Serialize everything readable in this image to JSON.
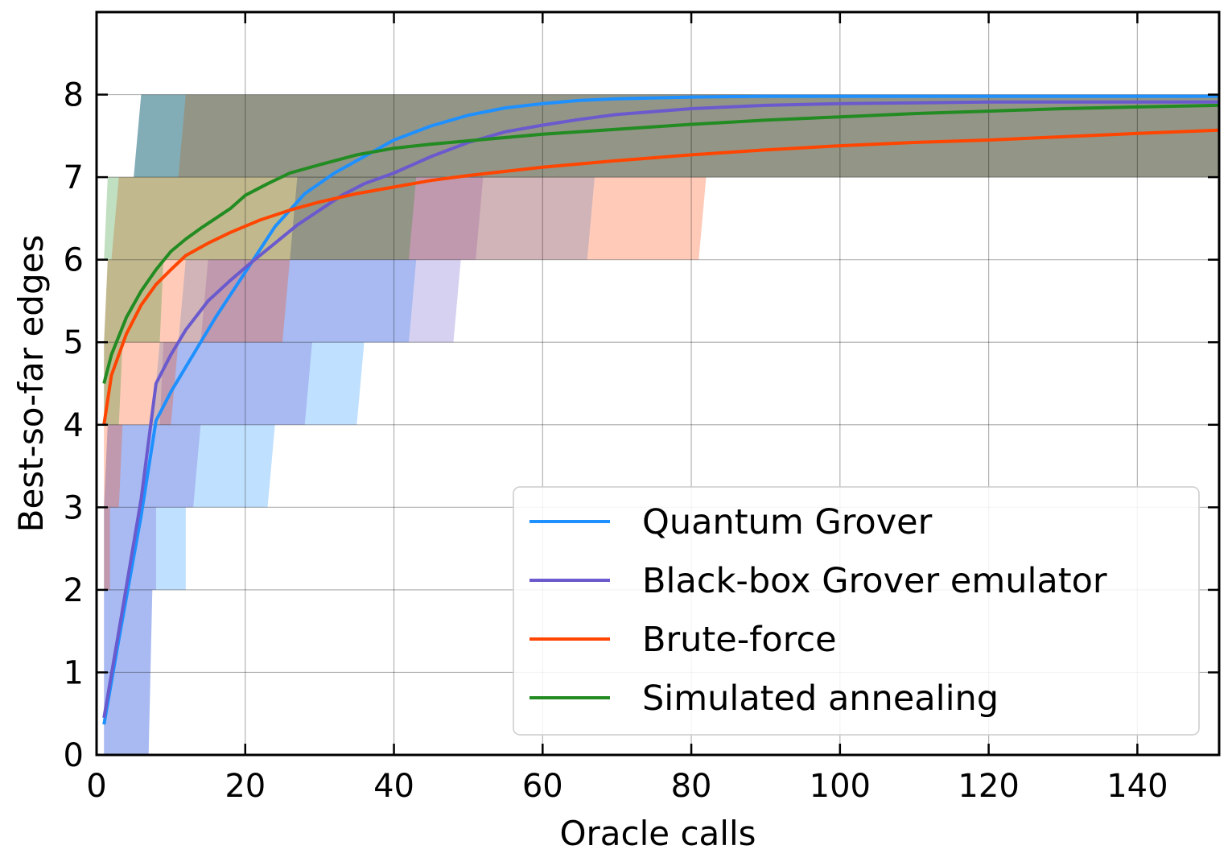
{
  "chart_data": {
    "type": "line",
    "title": "",
    "xlabel": "Oracle calls",
    "ylabel": "Best-so-far edges",
    "xlim": [
      0,
      151
    ],
    "ylim": [
      0,
      9
    ],
    "xticks": [
      0,
      20,
      40,
      60,
      80,
      100,
      120,
      140
    ],
    "yticks": [
      0,
      1,
      2,
      3,
      4,
      5,
      6,
      7,
      8
    ],
    "grid": true,
    "legend_position": "lower-right",
    "series": [
      {
        "name": "Quantum Grover",
        "color": "#1e90ff",
        "x": [
          1,
          3,
          6,
          8,
          10,
          13,
          16,
          20,
          24,
          28,
          32,
          36,
          40,
          45,
          50,
          55,
          60,
          65,
          70,
          80,
          90,
          100,
          110,
          120,
          130,
          140,
          151
        ],
        "y": [
          0.37,
          1.4,
          2.9,
          4.05,
          4.4,
          4.85,
          5.3,
          5.85,
          6.4,
          6.8,
          7.05,
          7.25,
          7.45,
          7.62,
          7.75,
          7.84,
          7.89,
          7.93,
          7.95,
          7.97,
          7.98,
          7.98,
          7.98,
          7.98,
          7.98,
          7.98,
          7.98
        ],
        "band": [
          {
            "y0": 0,
            "y1": 2,
            "x_left": [
              1,
              1
            ],
            "x_right": [
              7,
              7.5
            ]
          },
          {
            "y0": 2,
            "y1": 3,
            "x_left": [
              1,
              1
            ],
            "x_right": [
              12,
              12
            ]
          },
          {
            "y0": 3,
            "y1": 4,
            "x_left": [
              1,
              1.5
            ],
            "x_right": [
              23,
              24
            ]
          },
          {
            "y0": 4,
            "y1": 5,
            "x_left": [
              7.5,
              8.5
            ],
            "x_right": [
              35,
              36
            ]
          },
          {
            "y0": 5,
            "y1": 6,
            "x_left": [
              11,
              12
            ],
            "x_right": [
              42,
              43
            ]
          },
          {
            "y0": 6,
            "y1": 7,
            "x_left": [
              26,
              27
            ],
            "x_right": [
              66,
              67
            ]
          },
          {
            "y0": 7,
            "y1": 8,
            "x_left": [
              5,
              6
            ],
            "x_right": [
              151,
              151
            ]
          }
        ]
      },
      {
        "name": "Black-box Grover emulator",
        "color": "#6a5acd",
        "x": [
          1,
          3,
          6,
          8,
          10,
          12,
          15,
          18,
          21,
          24,
          27,
          30,
          33,
          36,
          40,
          45,
          50,
          55,
          60,
          65,
          70,
          80,
          90,
          100,
          110,
          120,
          130,
          140,
          151
        ],
        "y": [
          0.45,
          1.5,
          3.1,
          4.5,
          4.85,
          5.15,
          5.5,
          5.75,
          5.98,
          6.2,
          6.42,
          6.6,
          6.78,
          6.92,
          7.05,
          7.25,
          7.42,
          7.55,
          7.63,
          7.7,
          7.76,
          7.83,
          7.87,
          7.89,
          7.9,
          7.91,
          7.91,
          7.91,
          7.91
        ],
        "band": [
          {
            "y0": 0,
            "y1": 2,
            "x_left": [
              1,
              1
            ],
            "x_right": [
              7,
              7.5
            ]
          },
          {
            "y0": 2,
            "y1": 3,
            "x_left": [
              1,
              1
            ],
            "x_right": [
              8,
              8
            ]
          },
          {
            "y0": 3,
            "y1": 4,
            "x_left": [
              1,
              1.5
            ],
            "x_right": [
              13,
              14
            ]
          },
          {
            "y0": 4,
            "y1": 5,
            "x_left": [
              8.5,
              9
            ],
            "x_right": [
              28,
              29
            ]
          },
          {
            "y0": 5,
            "y1": 6,
            "x_left": [
              14,
              15
            ],
            "x_right": [
              48,
              49
            ]
          },
          {
            "y0": 6,
            "y1": 7,
            "x_left": [
              26,
              27
            ],
            "x_right": [
              51,
              52
            ]
          },
          {
            "y0": 7,
            "y1": 8,
            "x_left": [
              5,
              6
            ],
            "x_right": [
              151,
              151
            ]
          }
        ]
      },
      {
        "name": "Brute-force",
        "color": "#ff4500",
        "x": [
          1,
          2,
          4,
          6,
          8,
          10,
          12,
          15,
          18,
          22,
          26,
          30,
          35,
          40,
          45,
          50,
          55,
          60,
          70,
          80,
          90,
          100,
          110,
          120,
          130,
          140,
          151
        ],
        "y": [
          4.0,
          4.6,
          5.1,
          5.45,
          5.7,
          5.88,
          6.05,
          6.2,
          6.33,
          6.48,
          6.6,
          6.7,
          6.8,
          6.88,
          6.96,
          7.02,
          7.07,
          7.12,
          7.2,
          7.27,
          7.33,
          7.38,
          7.42,
          7.45,
          7.49,
          7.53,
          7.57
        ],
        "band": [
          {
            "y0": 2,
            "y1": 3,
            "x_left": [
              1,
              1
            ],
            "x_right": [
              1.8,
              1.8
            ]
          },
          {
            "y0": 3,
            "y1": 4,
            "x_left": [
              1,
              1
            ],
            "x_right": [
              3,
              3.5
            ]
          },
          {
            "y0": 4,
            "y1": 5,
            "x_left": [
              1,
              1
            ],
            "x_right": [
              10,
              11
            ]
          },
          {
            "y0": 5,
            "y1": 6,
            "x_left": [
              1,
              1.5
            ],
            "x_right": [
              25,
              26
            ]
          },
          {
            "y0": 6,
            "y1": 7,
            "x_left": [
              2,
              3
            ],
            "x_right": [
              81,
              82
            ]
          },
          {
            "y0": 7,
            "y1": 8,
            "x_left": [
              11,
              12
            ],
            "x_right": [
              151,
              151
            ]
          }
        ]
      },
      {
        "name": "Simulated annealing",
        "color": "#228b22",
        "x": [
          1,
          2,
          4,
          6,
          8,
          10,
          12,
          14,
          16,
          18,
          20,
          23,
          26,
          30,
          35,
          40,
          45,
          50,
          55,
          60,
          70,
          80,
          90,
          100,
          110,
          120,
          130,
          140,
          151
        ],
        "y": [
          4.5,
          4.85,
          5.3,
          5.62,
          5.88,
          6.1,
          6.25,
          6.38,
          6.5,
          6.62,
          6.78,
          6.92,
          7.05,
          7.15,
          7.27,
          7.35,
          7.4,
          7.44,
          7.48,
          7.52,
          7.58,
          7.64,
          7.69,
          7.73,
          7.77,
          7.8,
          7.83,
          7.85,
          7.87
        ],
        "band": [
          {
            "y0": 4,
            "y1": 5,
            "x_left": [
              1,
              1
            ],
            "x_right": [
              3,
              3.5
            ]
          },
          {
            "y0": 5,
            "y1": 6,
            "x_left": [
              1,
              1.5
            ],
            "x_right": [
              8.5,
              9
            ]
          },
          {
            "y0": 6,
            "y1": 7,
            "x_left": [
              1,
              1.5
            ],
            "x_right": [
              42,
              43
            ]
          },
          {
            "y0": 7,
            "y1": 8,
            "x_left": [
              5,
              6
            ],
            "x_right": [
              151,
              151
            ]
          }
        ]
      }
    ]
  }
}
